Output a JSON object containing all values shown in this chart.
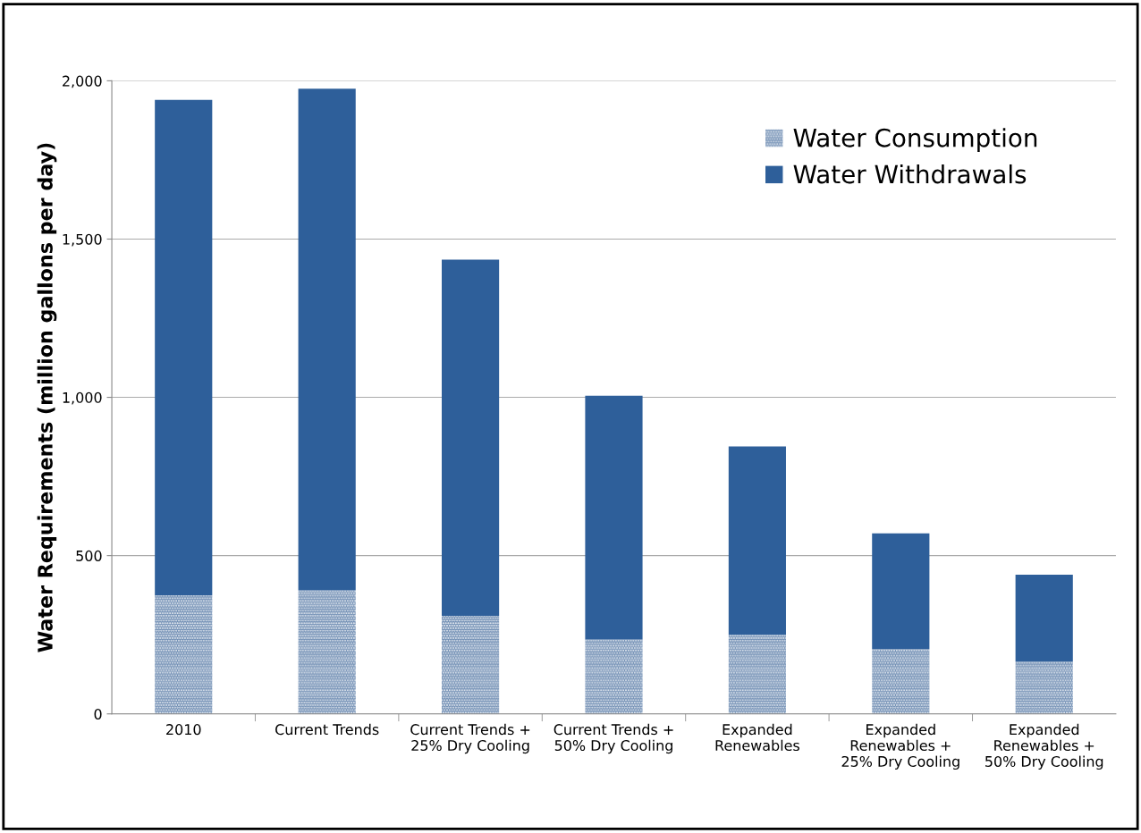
{
  "chart_data": {
    "type": "bar",
    "stacked": true,
    "ylabel": "Water Requirements (million gallons per day)",
    "categories": [
      "2010",
      "Current Trends",
      "Current Trends +\n25% Dry Cooling",
      "Current Trends +\n50% Dry Cooling",
      "Expanded\nRenewables",
      "Expanded\nRenewables +\n25% Dry Cooling",
      "Expanded\nRenewables +\n50% Dry Cooling"
    ],
    "series": [
      {
        "name": "Water Consumption",
        "color": "#6f8db3",
        "values": [
          375,
          390,
          310,
          235,
          250,
          205,
          165
        ]
      },
      {
        "name": "Water Withdrawals",
        "color": "#2e5f9a",
        "values": [
          1565,
          1585,
          1125,
          770,
          595,
          365,
          275
        ]
      }
    ],
    "ylim": [
      0,
      2000
    ],
    "yticks": [
      {
        "value": 0,
        "label": "0"
      },
      {
        "value": 500,
        "label": "500"
      },
      {
        "value": 1000,
        "label": "1,000"
      },
      {
        "value": 1500,
        "label": "1,500"
      },
      {
        "value": 2000,
        "label": "2,000"
      }
    ],
    "grid": "y",
    "legend": "top right"
  }
}
